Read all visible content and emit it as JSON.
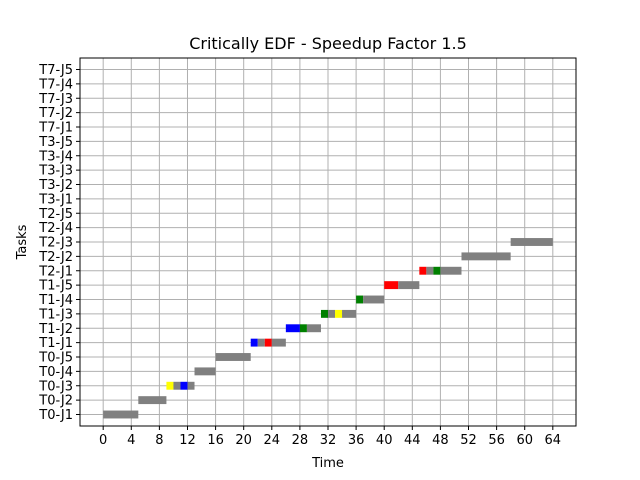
{
  "chart_data": {
    "type": "gantt",
    "title": "Critically EDF - Speedup Factor 1.5",
    "xlabel": "Time",
    "ylabel": "Tasks",
    "xlim": [
      -3.3,
      67.3
    ],
    "xticks": [
      0,
      4,
      8,
      12,
      16,
      20,
      24,
      28,
      32,
      36,
      40,
      44,
      48,
      52,
      56,
      60,
      64
    ],
    "grid": true,
    "categories": [
      "T0-J1",
      "T0-J2",
      "T0-J3",
      "T0-J4",
      "T0-J5",
      "T1-J1",
      "T1-J2",
      "T1-J3",
      "T1-J4",
      "T1-J5",
      "T2-J1",
      "T2-J2",
      "T2-J3",
      "T2-J4",
      "T2-J5",
      "T3-J1",
      "T3-J2",
      "T3-J3",
      "T3-J4",
      "T3-J5",
      "T7-J1",
      "T7-J2",
      "T7-J3",
      "T7-J4",
      "T7-J5"
    ],
    "colors": {
      "gray": "#808080",
      "yellow": "#ffff00",
      "blue": "#0000ff",
      "red": "#ff0000",
      "green": "#008000"
    },
    "segments": [
      {
        "task": "T0-J1",
        "start": 0.0,
        "end": 5.0,
        "color": "gray"
      },
      {
        "task": "T0-J2",
        "start": 5.0,
        "end": 9.0,
        "color": "gray"
      },
      {
        "task": "T0-J3",
        "start": 9.0,
        "end": 10.0,
        "color": "yellow"
      },
      {
        "task": "T0-J3",
        "start": 10.0,
        "end": 11.0,
        "color": "gray"
      },
      {
        "task": "T0-J3",
        "start": 11.0,
        "end": 12.0,
        "color": "blue"
      },
      {
        "task": "T0-J3",
        "start": 12.0,
        "end": 13.0,
        "color": "gray"
      },
      {
        "task": "T0-J4",
        "start": 13.0,
        "end": 16.0,
        "color": "gray"
      },
      {
        "task": "T0-J5",
        "start": 16.0,
        "end": 21.0,
        "color": "gray"
      },
      {
        "task": "T1-J1",
        "start": 21.0,
        "end": 22.0,
        "color": "blue"
      },
      {
        "task": "T1-J1",
        "start": 22.0,
        "end": 23.0,
        "color": "gray"
      },
      {
        "task": "T1-J1",
        "start": 23.0,
        "end": 24.0,
        "color": "red"
      },
      {
        "task": "T1-J1",
        "start": 24.0,
        "end": 26.0,
        "color": "gray"
      },
      {
        "task": "T1-J2",
        "start": 26.0,
        "end": 28.0,
        "color": "blue"
      },
      {
        "task": "T1-J2",
        "start": 28.0,
        "end": 29.0,
        "color": "green"
      },
      {
        "task": "T1-J2",
        "start": 29.0,
        "end": 31.0,
        "color": "gray"
      },
      {
        "task": "T1-J3",
        "start": 31.0,
        "end": 32.0,
        "color": "green"
      },
      {
        "task": "T1-J3",
        "start": 32.0,
        "end": 33.0,
        "color": "gray"
      },
      {
        "task": "T1-J3",
        "start": 33.0,
        "end": 34.0,
        "color": "yellow"
      },
      {
        "task": "T1-J3",
        "start": 34.0,
        "end": 36.0,
        "color": "gray"
      },
      {
        "task": "T1-J4",
        "start": 36.0,
        "end": 37.0,
        "color": "green"
      },
      {
        "task": "T1-J4",
        "start": 37.0,
        "end": 40.0,
        "color": "gray"
      },
      {
        "task": "T1-J5",
        "start": 40.0,
        "end": 42.0,
        "color": "red"
      },
      {
        "task": "T1-J5",
        "start": 42.0,
        "end": 45.0,
        "color": "gray"
      },
      {
        "task": "T2-J1",
        "start": 45.0,
        "end": 46.0,
        "color": "red"
      },
      {
        "task": "T2-J1",
        "start": 46.0,
        "end": 47.0,
        "color": "gray"
      },
      {
        "task": "T2-J1",
        "start": 47.0,
        "end": 48.0,
        "color": "green"
      },
      {
        "task": "T2-J1",
        "start": 48.0,
        "end": 51.0,
        "color": "gray"
      },
      {
        "task": "T2-J2",
        "start": 51.0,
        "end": 58.0,
        "color": "gray"
      },
      {
        "task": "T2-J3",
        "start": 58.0,
        "end": 64.0,
        "color": "gray"
      }
    ]
  }
}
